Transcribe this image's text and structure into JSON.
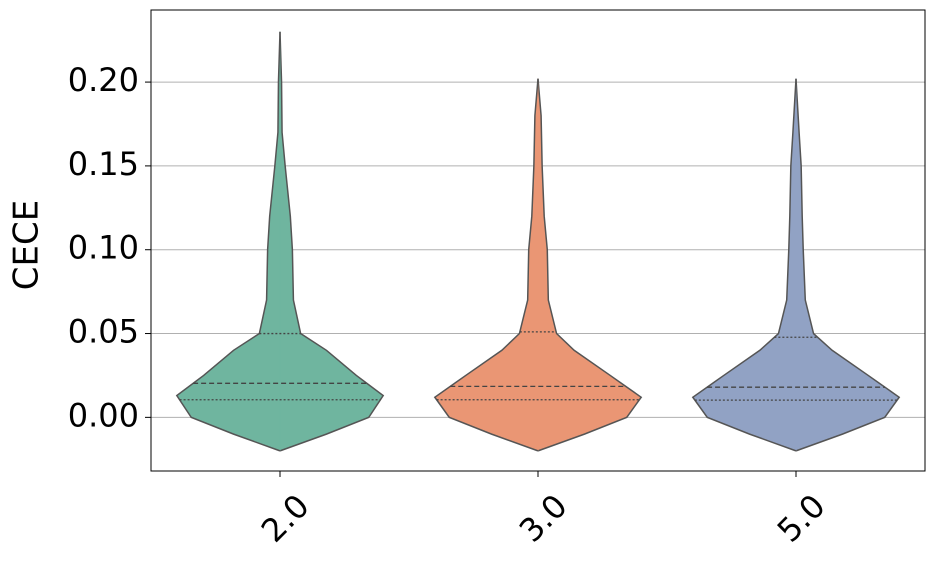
{
  "chart_data": {
    "type": "violin",
    "y_label": "CECE",
    "categories": [
      "2.0",
      "3.0",
      "5.0"
    ],
    "ylim": [
      -0.032,
      0.243
    ],
    "yticks": [
      {
        "value": 0,
        "label": "0.00"
      },
      {
        "value": 0.05,
        "label": "0.05"
      },
      {
        "value": 0.1,
        "label": "0.10"
      },
      {
        "value": 0.15,
        "label": "0.15"
      },
      {
        "value": 0.2,
        "label": "0.20"
      }
    ],
    "grid": true,
    "series": [
      {
        "color": "#6fb59f",
        "q1": 0.0105,
        "median": 0.0203,
        "q3": 0.05,
        "density_y": [
          -0.02,
          -0.01,
          0,
          0.013,
          0.025,
          0.04,
          0.05,
          0.07,
          0.1,
          0.12,
          0.15,
          0.17,
          0.2,
          0.23
        ],
        "density_width": [
          0,
          0.45,
          0.86,
          1,
          0.74,
          0.45,
          0.2,
          0.13,
          0.12,
          0.1,
          0.05,
          0.02,
          0.015,
          0
        ]
      },
      {
        "color": "#ea9674",
        "q1": 0.0105,
        "median": 0.0185,
        "q3": 0.051,
        "density_y": [
          -0.02,
          -0.01,
          0,
          0.012,
          0.025,
          0.04,
          0.05,
          0.07,
          0.1,
          0.12,
          0.15,
          0.18,
          0.202
        ],
        "density_width": [
          0,
          0.45,
          0.86,
          1,
          0.7,
          0.35,
          0.18,
          0.1,
          0.09,
          0.06,
          0.04,
          0.03,
          0
        ]
      },
      {
        "color": "#91a2c4",
        "q1": 0.0103,
        "median": 0.018,
        "q3": 0.0478,
        "density_y": [
          -0.02,
          -0.01,
          0,
          0.012,
          0.025,
          0.04,
          0.05,
          0.07,
          0.1,
          0.12,
          0.15,
          0.17,
          0.202
        ],
        "density_width": [
          0,
          0.45,
          0.86,
          1,
          0.7,
          0.35,
          0.17,
          0.09,
          0.07,
          0.06,
          0.05,
          0.03,
          0
        ]
      }
    ]
  }
}
